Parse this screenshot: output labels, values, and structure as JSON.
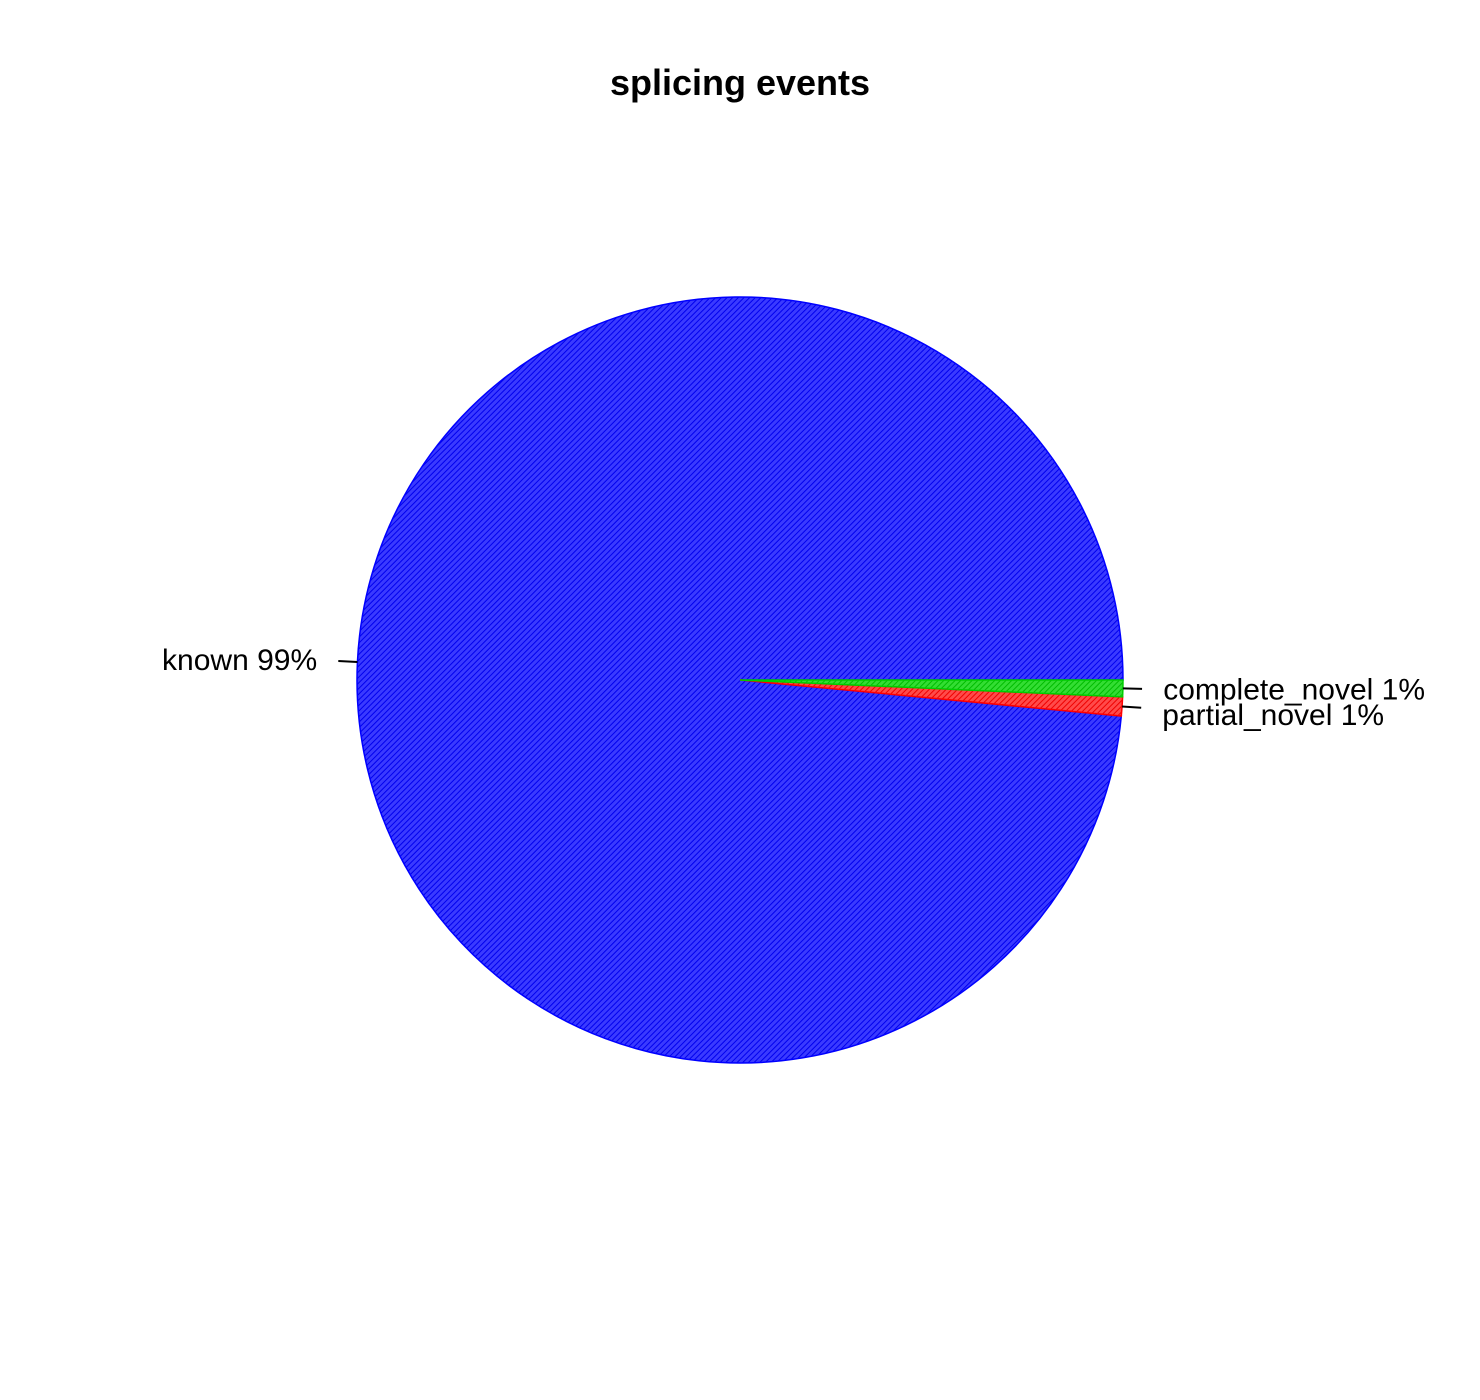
{
  "chart_data": {
    "type": "pie",
    "title": "splicing events",
    "slices": [
      {
        "name": "known",
        "value": 98.5,
        "label": "known 99%",
        "color": "#0000ff"
      },
      {
        "name": "partial_novel",
        "value": 0.8,
        "label": "partial_novel 1%",
        "color": "#ff0000"
      },
      {
        "name": "complete_novel",
        "value": 0.7,
        "label": "complete_novel 1%",
        "color": "#00cd00"
      }
    ]
  }
}
